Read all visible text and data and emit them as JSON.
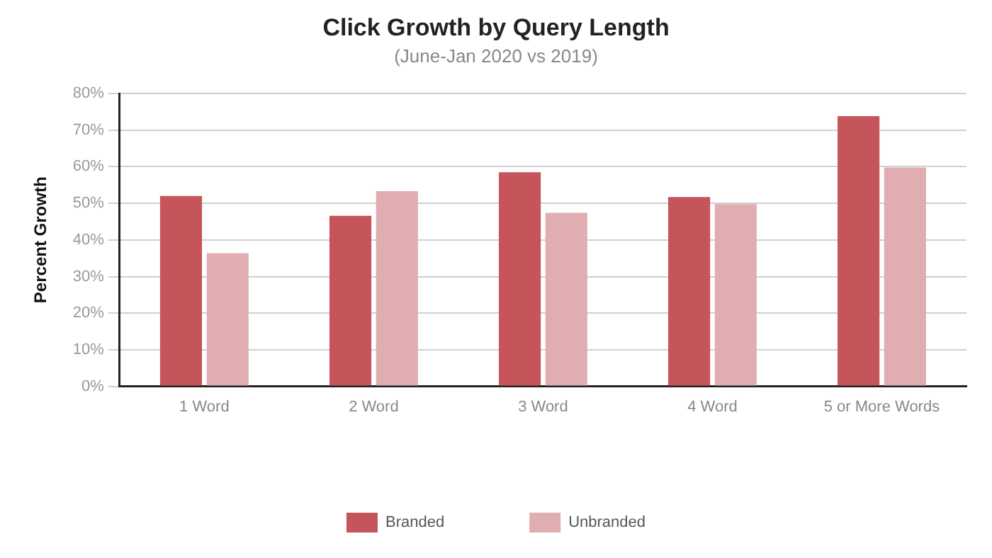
{
  "chart_data": {
    "type": "bar",
    "title": "Click Growth by Query Length",
    "subtitle": "(June-Jan 2020 vs 2019)",
    "ylabel": "Percent Growth",
    "categories": [
      "1 Word",
      "2 Word",
      "3 Word",
      "4 Word",
      "5 or More Words"
    ],
    "series": [
      {
        "name": "Branded",
        "color": "#c5545b",
        "values": [
          52.0,
          46.6,
          58.5,
          51.7,
          73.8
        ]
      },
      {
        "name": "Unbranded",
        "color": "#e0aeb1",
        "values": [
          36.4,
          53.3,
          47.4,
          49.8,
          59.8
        ]
      }
    ],
    "ylim": [
      0,
      80
    ],
    "yticks": [
      {
        "value": 0,
        "label": "0%"
      },
      {
        "value": 10,
        "label": "10%"
      },
      {
        "value": 20,
        "label": "20%"
      },
      {
        "value": 30,
        "label": "30%"
      },
      {
        "value": 40,
        "label": "40%"
      },
      {
        "value": 50,
        "label": "50%"
      },
      {
        "value": 60,
        "label": "60%"
      },
      {
        "value": 70,
        "label": "70%"
      },
      {
        "value": 80,
        "label": "80%"
      }
    ],
    "grid": "y",
    "legend": "bottom"
  }
}
